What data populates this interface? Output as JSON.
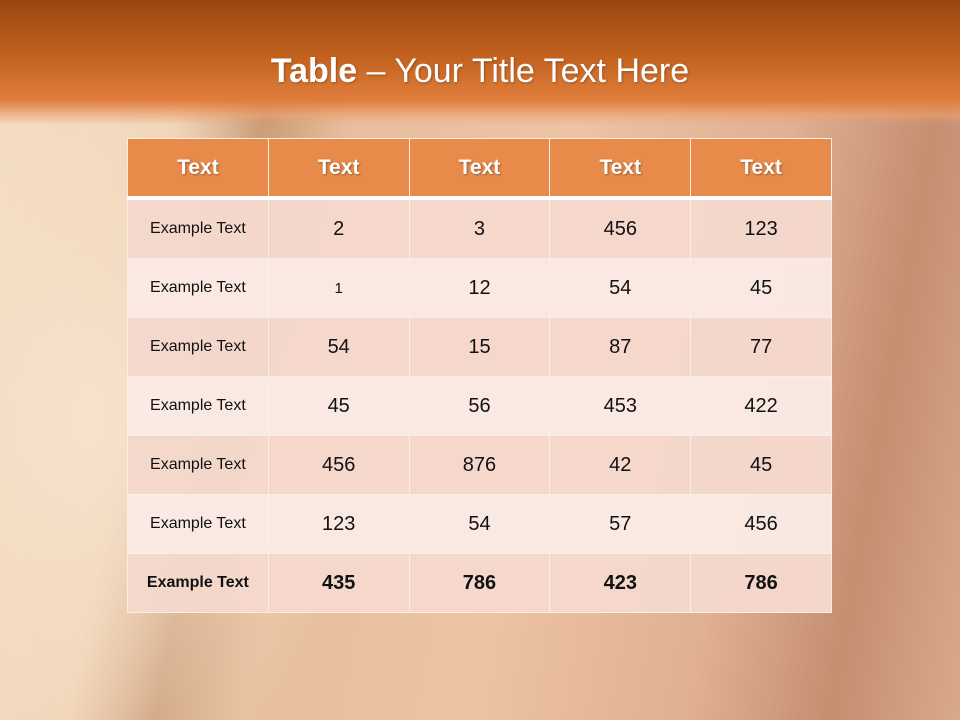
{
  "slide": {
    "title_bold": "Table",
    "title_rest": " – Your Title Text Here",
    "colors": {
      "header": "#e88b4a",
      "band": "#c2621f",
      "row_dark": "#f5d8cc",
      "row_light": "#faeae4"
    }
  },
  "table": {
    "headers": [
      "Text",
      "Text",
      "Text",
      "Text",
      "Text"
    ],
    "rows": [
      [
        "Example Text",
        "2",
        "3",
        "456",
        "123"
      ],
      [
        "Example Text",
        "1",
        "12",
        "54",
        "45"
      ],
      [
        "Example Text",
        "54",
        "15",
        "87",
        "77"
      ],
      [
        "Example Text",
        "45",
        "56",
        "453",
        "422"
      ],
      [
        "Example Text",
        "456",
        "876",
        "42",
        "45"
      ],
      [
        "Example Text",
        "123",
        "54",
        "57",
        "456"
      ],
      [
        "Example Text",
        "435",
        "786",
        "423",
        "786"
      ]
    ]
  }
}
